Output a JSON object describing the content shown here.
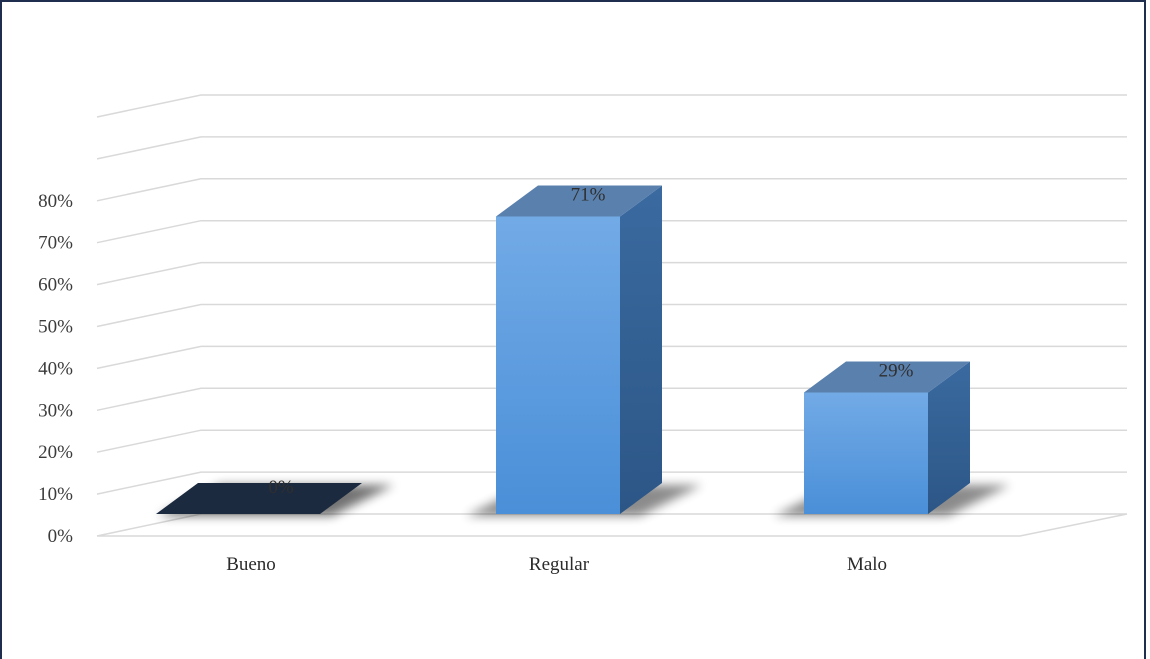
{
  "chart_data": {
    "type": "bar",
    "style": "3d-column",
    "categories": [
      "Bueno",
      "Regular",
      "Malo"
    ],
    "values": [
      0,
      71,
      29
    ],
    "data_labels": [
      "0%",
      "71%",
      "29%"
    ],
    "y_ticks": [
      "0%",
      "10%",
      "20%",
      "30%",
      "40%",
      "50%",
      "60%",
      "70%",
      "80%"
    ],
    "ylim": [
      0,
      100
    ],
    "grid": true,
    "legend": "none",
    "colors": {
      "bar_front_top": "#72aae6",
      "bar_front_bottom": "#4a8fd8",
      "bar_side": "#325f91",
      "bar_top": "#5a80ad",
      "zero_bar": "#1c2a3f",
      "grid": "#d9d9d9",
      "frame": "#1f2d4f"
    }
  }
}
